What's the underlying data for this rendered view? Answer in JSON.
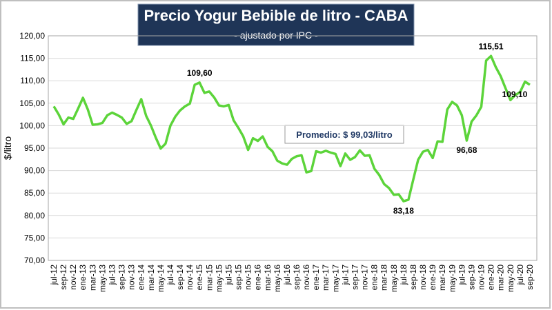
{
  "chart_data": {
    "type": "line",
    "title": "Precio Yogur Bebible de litro - CABA",
    "subtitle": "- ajustado por IPC -",
    "y_label": "$/litro",
    "annotation": "Promedio: $ 99,03/litro",
    "categories": [
      "jul-12",
      null,
      "sep-12",
      null,
      "nov-12",
      null,
      "ene-13",
      null,
      "mar-13",
      null,
      "may-13",
      null,
      "jul-13",
      null,
      "sep-13",
      null,
      "nov-13",
      null,
      "ene-14",
      null,
      "mar-14",
      null,
      "may-14",
      null,
      "jul-14",
      null,
      "sep-14",
      null,
      "nov-14",
      null,
      "ene-15",
      null,
      "mar-15",
      null,
      "may-15",
      null,
      "jul-15",
      null,
      "sep-15",
      null,
      "nov-15",
      null,
      "ene-16",
      null,
      "mar-16",
      null,
      "may-16",
      null,
      "jul-16",
      null,
      "sep-16",
      null,
      "nov-16",
      null,
      "ene-17",
      null,
      "mar-17",
      null,
      "may-17",
      null,
      "jul-17",
      null,
      "sep-17",
      null,
      "nov-17",
      null,
      "ene-18",
      null,
      "mar-18",
      null,
      "may-18",
      null,
      "jul-18",
      null,
      "sep-18",
      null,
      "nov-18",
      null,
      "ene-19",
      null,
      "mar-19",
      null,
      "may-19",
      null,
      "jul-19",
      null,
      "sep-19",
      null,
      "nov-19",
      null,
      "ene-20",
      null,
      "mar-20",
      null,
      "may-20",
      null,
      "jul-20",
      null,
      "sep-20"
    ],
    "series": [
      {
        "name": "Precio",
        "color": "#5cd43a",
        "values": [
          104.3,
          102.5,
          100.3,
          101.8,
          101.5,
          103.8,
          106.2,
          103.6,
          100.2,
          100.3,
          100.6,
          102.3,
          102.9,
          102.4,
          101.8,
          100.4,
          101.0,
          103.5,
          105.9,
          102.2,
          100.0,
          97.3,
          94.9,
          96.0,
          100.0,
          102.0,
          103.4,
          104.3,
          104.9,
          109.1,
          109.6,
          107.3,
          107.6,
          106.3,
          104.5,
          104.3,
          104.6,
          101.2,
          99.5,
          97.6,
          94.6,
          97.2,
          96.6,
          97.6,
          95.3,
          94.3,
          92.2,
          91.6,
          91.3,
          92.6,
          93.2,
          93.4,
          89.6,
          89.9,
          94.3,
          94.0,
          94.4,
          94.0,
          93.7,
          91.0,
          93.8,
          92.4,
          93.0,
          94.5,
          93.3,
          93.4,
          90.4,
          89.0,
          87.0,
          86.1,
          84.6,
          84.7,
          83.18,
          83.5,
          88.0,
          92.4,
          94.2,
          94.6,
          92.8,
          96.5,
          96.4,
          103.6,
          105.3,
          104.5,
          102.3,
          96.68,
          100.9,
          102.3,
          104.2,
          114.5,
          115.51,
          113.0,
          111.0,
          108.3,
          105.7,
          106.8,
          107.5,
          109.8,
          109.1
        ],
        "value_labels": [
          null,
          null,
          null,
          null,
          null,
          null,
          null,
          null,
          null,
          null,
          null,
          null,
          null,
          null,
          null,
          null,
          null,
          null,
          null,
          null,
          null,
          null,
          null,
          null,
          null,
          null,
          null,
          null,
          null,
          null,
          "109,60",
          null,
          null,
          null,
          null,
          null,
          null,
          null,
          null,
          null,
          null,
          null,
          null,
          null,
          null,
          null,
          null,
          null,
          null,
          null,
          null,
          null,
          null,
          null,
          null,
          null,
          null,
          null,
          null,
          null,
          null,
          null,
          null,
          null,
          null,
          null,
          null,
          null,
          null,
          null,
          null,
          null,
          "83,18",
          null,
          null,
          null,
          null,
          null,
          null,
          null,
          null,
          null,
          null,
          null,
          null,
          "96,68",
          null,
          null,
          null,
          null,
          "115,51",
          null,
          null,
          null,
          null,
          null,
          null,
          null,
          "109,10"
        ]
      }
    ],
    "ylim": [
      70,
      120
    ],
    "yticks": [
      {
        "value": 70,
        "label": "70,00"
      },
      {
        "value": 75,
        "label": "75,00"
      },
      {
        "value": 80,
        "label": "80,00"
      },
      {
        "value": 85,
        "label": "85,00"
      },
      {
        "value": 90,
        "label": "90,00"
      },
      {
        "value": 95,
        "label": "95,00"
      },
      {
        "value": 100,
        "label": "100,00"
      },
      {
        "value": 105,
        "label": "105,00"
      },
      {
        "value": 110,
        "label": "110,00"
      },
      {
        "value": 115,
        "label": "115,00"
      },
      {
        "value": 120,
        "label": "120,00"
      }
    ],
    "grid": true
  }
}
